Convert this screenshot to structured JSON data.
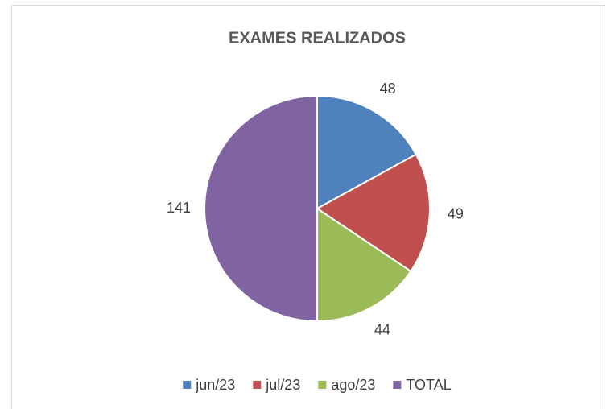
{
  "chart_data": {
    "type": "pie",
    "title": "EXAMES REALIZADOS",
    "categories": [
      "jun/23",
      "jul/23",
      "ago/23",
      "TOTAL"
    ],
    "values": [
      48,
      49,
      44,
      141
    ],
    "colors": [
      "#4f81bd",
      "#c0504d",
      "#9bbb59",
      "#8064a2"
    ],
    "legend": "bottom"
  }
}
